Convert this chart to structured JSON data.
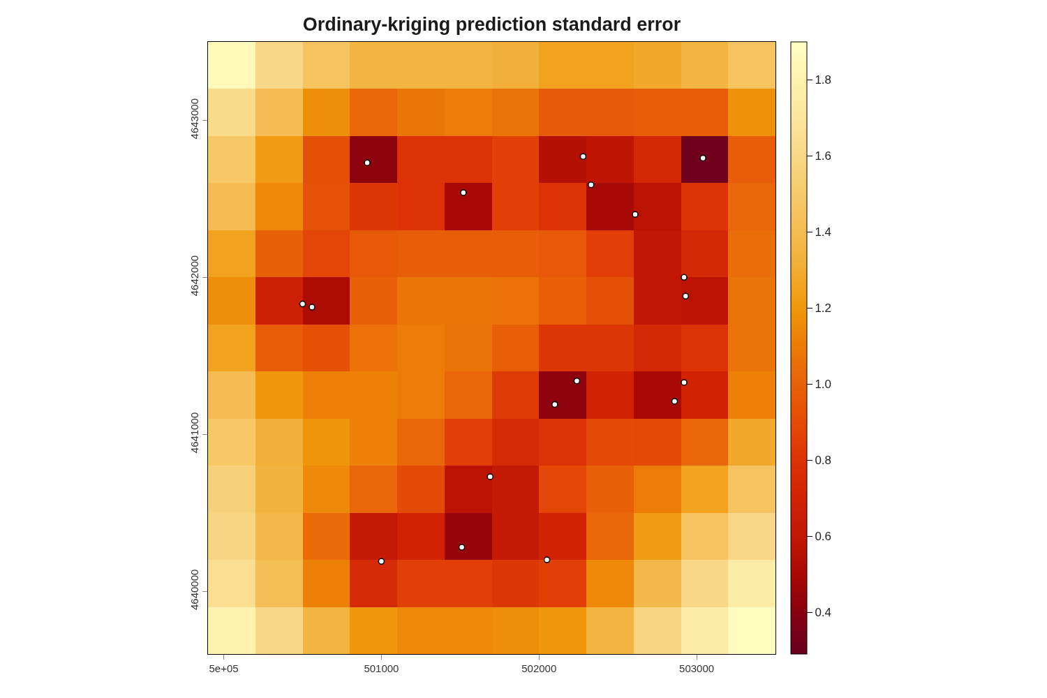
{
  "chart_data": {
    "type": "heatmap",
    "title": "Ordinary-kriging prediction standard error",
    "xlim": [
      499900,
      503500
    ],
    "ylim": [
      4639600,
      4643500
    ],
    "xticks": [
      {
        "value": 500000,
        "label": "5e+05"
      },
      501000,
      502000,
      503000
    ],
    "yticks": [
      4640000,
      4641000,
      4642000,
      4643000
    ],
    "clim": [
      0.29,
      1.9
    ],
    "cticks": [
      0.4,
      0.6,
      0.8,
      {
        "value": 1,
        "label": "1.0"
      },
      1.2,
      1.4,
      1.6,
      1.8
    ],
    "colors": [
      "#67001f",
      "#850012",
      "#a50804",
      "#c01604",
      "#d02204",
      "#dc3006",
      "#e44a06",
      "#e86008",
      "#ec7a08",
      "#f0960a",
      "#f2ac30",
      "#f4bc52",
      "#f6ca6a",
      "#f8d888",
      "#fbe69c",
      "#fef2ae",
      "#ffffc4"
    ],
    "cells": [
      [
        1.85,
        1.6,
        1.45,
        1.35,
        1.35,
        1.35,
        1.32,
        1.25,
        1.25,
        1.28,
        1.35,
        1.45
      ],
      [
        1.62,
        1.4,
        1.17,
        1.02,
        1.08,
        1.1,
        1.07,
        0.97,
        0.97,
        0.98,
        0.98,
        1.18
      ],
      [
        1.48,
        1.22,
        0.92,
        0.42,
        0.8,
        0.8,
        0.86,
        0.55,
        0.58,
        0.73,
        0.32,
        0.98
      ],
      [
        1.4,
        1.15,
        0.93,
        0.82,
        0.8,
        0.5,
        0.85,
        0.8,
        0.5,
        0.57,
        0.8,
        1.02
      ],
      [
        1.25,
        1.0,
        0.88,
        0.96,
        0.98,
        0.98,
        0.98,
        0.96,
        0.85,
        0.6,
        0.73,
        1.05
      ],
      [
        1.17,
        0.67,
        0.52,
        1.0,
        1.08,
        1.08,
        1.06,
        0.99,
        0.92,
        0.6,
        0.57,
        1.07
      ],
      [
        1.25,
        0.98,
        0.92,
        1.06,
        1.1,
        1.07,
        0.99,
        0.82,
        0.82,
        0.73,
        0.8,
        1.07
      ],
      [
        1.4,
        1.2,
        1.12,
        1.12,
        1.1,
        1.02,
        0.83,
        0.42,
        0.7,
        0.5,
        0.7,
        1.12
      ],
      [
        1.48,
        1.32,
        1.19,
        1.12,
        1.02,
        0.85,
        0.74,
        0.8,
        0.9,
        0.89,
        1.02,
        1.28
      ],
      [
        1.55,
        1.34,
        1.15,
        1.02,
        0.9,
        0.57,
        0.62,
        0.88,
        1.0,
        1.1,
        1.25,
        1.45
      ],
      [
        1.58,
        1.37,
        1.04,
        0.62,
        0.7,
        0.45,
        0.62,
        0.7,
        1.02,
        1.22,
        1.45,
        1.6
      ],
      [
        1.65,
        1.41,
        1.12,
        0.74,
        0.85,
        0.85,
        0.82,
        0.85,
        1.15,
        1.37,
        1.6,
        1.75
      ],
      [
        1.8,
        1.6,
        1.35,
        1.2,
        1.15,
        1.15,
        1.17,
        1.21,
        1.35,
        1.58,
        1.75,
        1.88
      ]
    ],
    "marker": "circle",
    "series": [
      {
        "type": "scatter",
        "color": "#ffffff",
        "x": [
          500910,
          501520,
          502280,
          502330,
          502610,
          503040,
          502920,
          502930,
          500500,
          500560,
          502240,
          502100,
          502920,
          502860,
          501690,
          501510,
          501000,
          502050
        ],
        "values": [
          4642730,
          4642540,
          4642770,
          4642590,
          4642400,
          4642760,
          4642000,
          4641880,
          4641830,
          4641810,
          4641340,
          4641190,
          4641330,
          4641210,
          4640730,
          4640280,
          4640190,
          4640200
        ]
      }
    ]
  }
}
